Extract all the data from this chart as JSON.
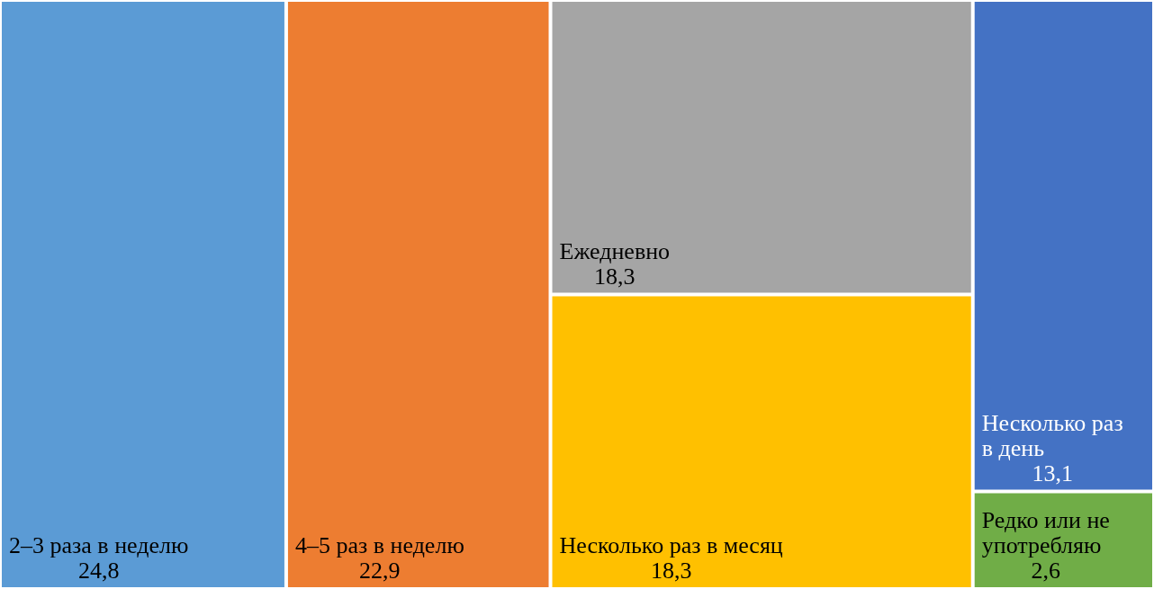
{
  "chart_data": {
    "type": "other",
    "categories": [
      "2–3 раза в неделю",
      "4–5 раз в неделю",
      "Ежедневно",
      "Несколько раз в месяц",
      "Несколько раз в день",
      "Редко или не употребляю"
    ],
    "values": [
      24.8,
      22.9,
      18.3,
      18.3,
      13.1,
      2.6
    ],
    "value_labels": [
      "24,8",
      "22,9",
      "18,3",
      "18,3",
      "13,1",
      "2,6"
    ],
    "colors": [
      "#5b9bd5",
      "#ed7d31",
      "#a5a5a5",
      "#ffc000",
      "#4472c4",
      "#70ad47"
    ]
  }
}
